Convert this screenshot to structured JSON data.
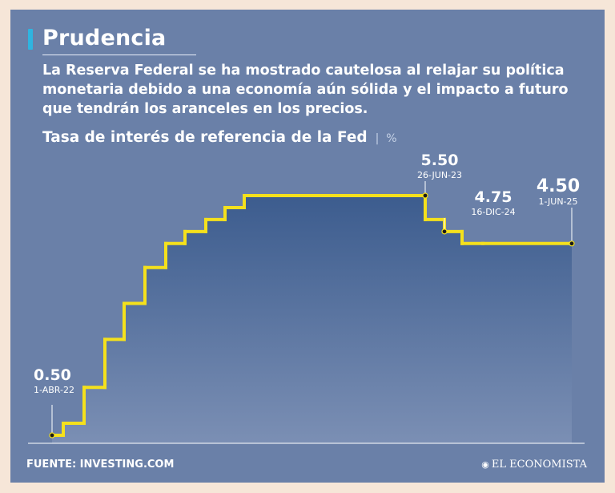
{
  "header": {
    "title": "Prudencia",
    "subtitle": "La Reserva Federal se ha mostrado cautelosa al relajar su política monetaria debido a una economía aún sólida y el impacto a futuro que tendrán los aranceles en los precios."
  },
  "chart_data": {
    "type": "line",
    "step": true,
    "title": "Tasa de interés de referencia de la Fed",
    "unit": "%",
    "xlabel": "",
    "ylabel": "",
    "ylim": [
      0.0,
      6.0
    ],
    "grid": false,
    "legend": "none",
    "colors": {
      "line": "#f5e11c",
      "background": "#6a80a8",
      "area_top": "#3d5d8f"
    },
    "series": [
      {
        "values": [
          0.5,
          0.75,
          1.5,
          2.5,
          3.25,
          4.0,
          4.5,
          4.75,
          5.0,
          5.25,
          5.5,
          5.5,
          5.0,
          4.75,
          4.5,
          4.5
        ]
      }
    ],
    "annotations": [
      {
        "index": 0,
        "value": "0.50",
        "date": "1-ABR-22"
      },
      {
        "index": 10,
        "value": "5.50",
        "date": "26-JUN-23"
      },
      {
        "index": 13,
        "value": "4.75",
        "date": "16-DIC-24"
      },
      {
        "index": 15,
        "value": "4.50",
        "date": "1-JUN-25"
      }
    ]
  },
  "footer": {
    "source": "FUENTE: INVESTING.COM",
    "brand": "EL ECONOMISTA",
    "brand_icon": "el-economista-logo-icon"
  }
}
